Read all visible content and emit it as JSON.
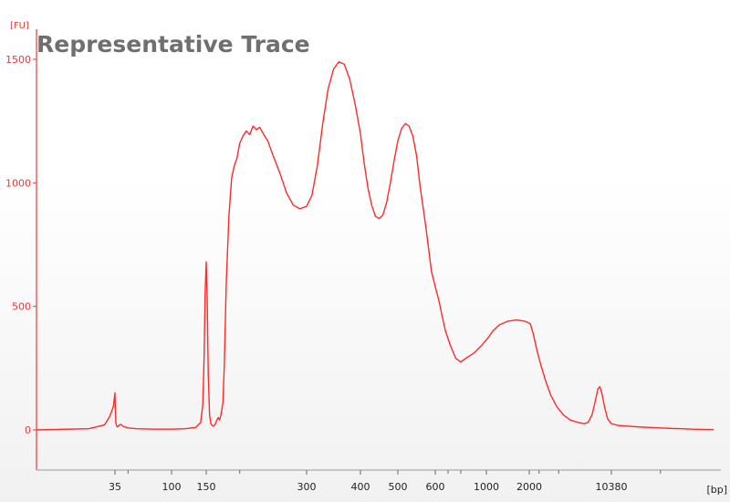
{
  "chart_data": {
    "type": "line",
    "title": "Representative Trace",
    "y_unit_label": "[FU]",
    "x_unit_label": "[bp]",
    "ylim": [
      -150,
      1570
    ],
    "y_ticks": [
      0,
      500,
      1000,
      1500
    ],
    "x_ticks": [
      35,
      100,
      150,
      300,
      400,
      500,
      600,
      1000,
      2000,
      10380
    ],
    "x_scale": "nonlinear-ladder",
    "series_color": "#ff2a2a",
    "axis_color": "#e8393b",
    "series": [
      {
        "values": [
          [
            20,
            0
          ],
          [
            30,
            5
          ],
          [
            32,
            15
          ],
          [
            33,
            20
          ],
          [
            34,
            55
          ],
          [
            34.7,
            95
          ],
          [
            35,
            150
          ],
          [
            35.3,
            95
          ],
          [
            36,
            30
          ],
          [
            37,
            15
          ],
          [
            38,
            12
          ],
          [
            40,
            20
          ],
          [
            42,
            22
          ],
          [
            44,
            15
          ],
          [
            50,
            8
          ],
          [
            60,
            5
          ],
          [
            80,
            3
          ],
          [
            100,
            3
          ],
          [
            120,
            5
          ],
          [
            135,
            10
          ],
          [
            142,
            30
          ],
          [
            145,
            100
          ],
          [
            147,
            300
          ],
          [
            148.5,
            560
          ],
          [
            150,
            680
          ],
          [
            151.5,
            520
          ],
          [
            153,
            230
          ],
          [
            155,
            60
          ],
          [
            157,
            25
          ],
          [
            160,
            15
          ],
          [
            163,
            20
          ],
          [
            166,
            40
          ],
          [
            168,
            50
          ],
          [
            170,
            40
          ],
          [
            172,
            60
          ],
          [
            175,
            110
          ],
          [
            177,
            260
          ],
          [
            180,
            600
          ],
          [
            184,
            870
          ],
          [
            188,
            1020
          ],
          [
            192,
            1070
          ],
          [
            196,
            1100
          ],
          [
            200,
            1160
          ],
          [
            205,
            1190
          ],
          [
            210,
            1210
          ],
          [
            215,
            1195
          ],
          [
            220,
            1230
          ],
          [
            225,
            1215
          ],
          [
            230,
            1225
          ],
          [
            235,
            1200
          ],
          [
            242,
            1170
          ],
          [
            250,
            1110
          ],
          [
            260,
            1040
          ],
          [
            270,
            960
          ],
          [
            280,
            910
          ],
          [
            290,
            895
          ],
          [
            300,
            905
          ],
          [
            310,
            950
          ],
          [
            320,
            1070
          ],
          [
            330,
            1240
          ],
          [
            340,
            1380
          ],
          [
            350,
            1460
          ],
          [
            360,
            1490
          ],
          [
            370,
            1480
          ],
          [
            380,
            1420
          ],
          [
            390,
            1320
          ],
          [
            400,
            1200
          ],
          [
            410,
            1080
          ],
          [
            420,
            980
          ],
          [
            430,
            910
          ],
          [
            440,
            865
          ],
          [
            450,
            855
          ],
          [
            460,
            870
          ],
          [
            470,
            920
          ],
          [
            480,
            1000
          ],
          [
            490,
            1090
          ],
          [
            500,
            1170
          ],
          [
            510,
            1220
          ],
          [
            520,
            1240
          ],
          [
            530,
            1230
          ],
          [
            540,
            1190
          ],
          [
            550,
            1110
          ],
          [
            560,
            980
          ],
          [
            575,
            820
          ],
          [
            590,
            640
          ],
          [
            610,
            560
          ],
          [
            630,
            520
          ],
          [
            650,
            470
          ],
          [
            680,
            400
          ],
          [
            720,
            340
          ],
          [
            760,
            290
          ],
          [
            800,
            275
          ],
          [
            840,
            290
          ],
          [
            900,
            310
          ],
          [
            960,
            340
          ],
          [
            1050,
            375
          ],
          [
            1150,
            400
          ],
          [
            1300,
            425
          ],
          [
            1500,
            440
          ],
          [
            1700,
            445
          ],
          [
            1900,
            440
          ],
          [
            2100,
            430
          ],
          [
            2400,
            390
          ],
          [
            2800,
            320
          ],
          [
            3200,
            260
          ],
          [
            3700,
            195
          ],
          [
            4200,
            140
          ],
          [
            4800,
            95
          ],
          [
            5500,
            60
          ],
          [
            6200,
            40
          ],
          [
            7000,
            30
          ],
          [
            7600,
            25
          ],
          [
            8000,
            30
          ],
          [
            8400,
            60
          ],
          [
            8700,
            110
          ],
          [
            9000,
            165
          ],
          [
            9200,
            175
          ],
          [
            9400,
            150
          ],
          [
            9700,
            90
          ],
          [
            10000,
            45
          ],
          [
            10380,
            25
          ],
          [
            11000,
            18
          ],
          [
            12000,
            15
          ],
          [
            13000,
            12
          ],
          [
            14000,
            10
          ],
          [
            15000,
            8
          ],
          [
            16000,
            6
          ],
          [
            17000,
            5
          ],
          [
            18000,
            3
          ],
          [
            19000,
            2
          ],
          [
            20000,
            1
          ]
        ]
      }
    ]
  }
}
